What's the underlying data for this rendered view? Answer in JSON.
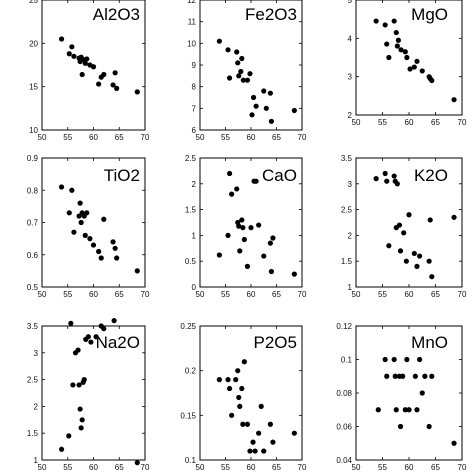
{
  "chart_data": [
    {
      "type": "scatter",
      "title": "Al2O3",
      "xlim": [
        50,
        70
      ],
      "ylim": [
        10,
        25
      ],
      "xticks": [
        "50",
        "55",
        "60",
        "65",
        "70"
      ],
      "yticks": [
        "10",
        "15",
        "20",
        "25"
      ],
      "points": [
        [
          53.8,
          20.5
        ],
        [
          55.3,
          18.8
        ],
        [
          55.8,
          19.6
        ],
        [
          56.2,
          18.5
        ],
        [
          57.2,
          18.3
        ],
        [
          57.4,
          17.9
        ],
        [
          57.6,
          18.4
        ],
        [
          57.8,
          16.4
        ],
        [
          58.2,
          18.1
        ],
        [
          58.4,
          17.7
        ],
        [
          58.7,
          18.2
        ],
        [
          59.3,
          17.5
        ],
        [
          60.0,
          17.3
        ],
        [
          61.0,
          15.3
        ],
        [
          61.5,
          16.1
        ],
        [
          62.0,
          16.4
        ],
        [
          63.8,
          15.2
        ],
        [
          64.2,
          16.6
        ],
        [
          64.5,
          14.8
        ],
        [
          68.5,
          14.4
        ]
      ]
    },
    {
      "type": "scatter",
      "title": "Fe2O3",
      "xlim": [
        50,
        70
      ],
      "ylim": [
        6,
        12
      ],
      "xticks": [
        "50",
        "55",
        "60",
        "65",
        "70"
      ],
      "yticks": [
        "6",
        "7",
        "8",
        "9",
        "10",
        "11",
        "12"
      ],
      "points": [
        [
          53.8,
          10.1
        ],
        [
          55.5,
          9.7
        ],
        [
          55.8,
          8.4
        ],
        [
          57.2,
          9.6
        ],
        [
          57.4,
          9.1
        ],
        [
          57.6,
          8.5
        ],
        [
          58.0,
          8.7
        ],
        [
          58.2,
          9.3
        ],
        [
          58.5,
          8.3
        ],
        [
          59.3,
          8.3
        ],
        [
          59.8,
          8.6
        ],
        [
          60.5,
          7.5
        ],
        [
          60.2,
          6.7
        ],
        [
          61.0,
          7.1
        ],
        [
          62.5,
          7.8
        ],
        [
          63.0,
          7.0
        ],
        [
          63.8,
          7.7
        ],
        [
          64.0,
          6.4
        ],
        [
          68.5,
          6.9
        ]
      ]
    },
    {
      "type": "scatter",
      "title": "MgO",
      "xlim": [
        50,
        70
      ],
      "ylim": [
        2,
        5
      ],
      "xticks": [
        "50",
        "55",
        "60",
        "65",
        "70"
      ],
      "yticks": [
        "2",
        "3",
        "4",
        "5"
      ],
      "points": [
        [
          53.8,
          4.45
        ],
        [
          55.5,
          4.35
        ],
        [
          55.8,
          3.85
        ],
        [
          56.2,
          3.5
        ],
        [
          57.2,
          4.45
        ],
        [
          57.6,
          4.15
        ],
        [
          57.8,
          3.8
        ],
        [
          58.0,
          3.95
        ],
        [
          58.5,
          3.7
        ],
        [
          59.3,
          3.65
        ],
        [
          59.6,
          3.5
        ],
        [
          60.2,
          3.2
        ],
        [
          61.0,
          3.25
        ],
        [
          61.5,
          3.4
        ],
        [
          62.5,
          3.15
        ],
        [
          63.8,
          3.0
        ],
        [
          64.0,
          2.95
        ],
        [
          64.3,
          2.9
        ],
        [
          68.5,
          2.4
        ]
      ]
    },
    {
      "type": "scatter",
      "title": "TiO2",
      "xlim": [
        50,
        70
      ],
      "ylim": [
        0.5,
        0.9
      ],
      "xticks": [
        "50",
        "55",
        "60",
        "65",
        "70"
      ],
      "yticks": [
        "0.5",
        "0.6",
        "0.7",
        "0.8",
        "0.9"
      ],
      "points": [
        [
          53.8,
          0.81
        ],
        [
          55.3,
          0.73
        ],
        [
          55.8,
          0.8
        ],
        [
          56.2,
          0.67
        ],
        [
          57.2,
          0.72
        ],
        [
          57.4,
          0.76
        ],
        [
          57.6,
          0.7
        ],
        [
          57.8,
          0.73
        ],
        [
          58.2,
          0.72
        ],
        [
          58.4,
          0.66
        ],
        [
          58.7,
          0.73
        ],
        [
          59.3,
          0.65
        ],
        [
          60.0,
          0.63
        ],
        [
          61.0,
          0.61
        ],
        [
          61.5,
          0.59
        ],
        [
          62.0,
          0.71
        ],
        [
          63.8,
          0.64
        ],
        [
          64.2,
          0.62
        ],
        [
          64.5,
          0.59
        ],
        [
          68.5,
          0.55
        ]
      ]
    },
    {
      "type": "scatter",
      "title": "CaO",
      "xlim": [
        50,
        70
      ],
      "ylim": [
        0,
        2.5
      ],
      "xticks": [
        "50",
        "55",
        "60",
        "65",
        "70"
      ],
      "yticks": [
        "0",
        "0.5",
        "1",
        "1.5",
        "2",
        "2.5"
      ],
      "points": [
        [
          53.8,
          0.62
        ],
        [
          55.5,
          1.0
        ],
        [
          55.8,
          2.2
        ],
        [
          56.2,
          1.8
        ],
        [
          57.2,
          1.9
        ],
        [
          57.4,
          1.25
        ],
        [
          57.6,
          1.18
        ],
        [
          57.8,
          0.7
        ],
        [
          58.2,
          1.3
        ],
        [
          58.4,
          1.15
        ],
        [
          58.7,
          0.92
        ],
        [
          59.3,
          0.4
        ],
        [
          60.0,
          1.15
        ],
        [
          60.6,
          2.05
        ],
        [
          61.0,
          2.05
        ],
        [
          61.5,
          1.2
        ],
        [
          62.5,
          0.6
        ],
        [
          63.8,
          0.85
        ],
        [
          64.0,
          0.3
        ],
        [
          64.3,
          0.95
        ],
        [
          68.5,
          0.25
        ]
      ]
    },
    {
      "type": "scatter",
      "title": "K2O",
      "xlim": [
        50,
        70
      ],
      "ylim": [
        1,
        3.5
      ],
      "xticks": [
        "50",
        "55",
        "60",
        "65",
        "70"
      ],
      "yticks": [
        "1",
        "1.5",
        "2",
        "2.5",
        "3",
        "3.5"
      ],
      "points": [
        [
          53.8,
          3.1
        ],
        [
          55.5,
          3.2
        ],
        [
          55.8,
          3.05
        ],
        [
          56.2,
          1.8
        ],
        [
          57.2,
          3.15
        ],
        [
          57.4,
          3.05
        ],
        [
          57.6,
          2.15
        ],
        [
          57.8,
          3.0
        ],
        [
          58.2,
          2.2
        ],
        [
          58.4,
          1.7
        ],
        [
          59.0,
          2.05
        ],
        [
          59.5,
          1.5
        ],
        [
          60.0,
          2.4
        ],
        [
          61.0,
          1.65
        ],
        [
          61.5,
          1.4
        ],
        [
          62.0,
          1.6
        ],
        [
          63.8,
          1.5
        ],
        [
          64.0,
          2.3
        ],
        [
          64.3,
          1.2
        ],
        [
          68.5,
          2.35
        ]
      ]
    },
    {
      "type": "scatter",
      "title": "Na2O",
      "xlim": [
        50,
        70
      ],
      "ylim": [
        1,
        3.5
      ],
      "xticks": [
        "50",
        "55",
        "60",
        "65",
        "70"
      ],
      "yticks": [
        "1",
        "1.5",
        "2",
        "2.5",
        "3",
        "3.5"
      ],
      "points": [
        [
          53.8,
          1.2
        ],
        [
          55.2,
          1.45
        ],
        [
          55.6,
          3.55
        ],
        [
          56.0,
          2.4
        ],
        [
          56.5,
          3.0
        ],
        [
          57.0,
          3.05
        ],
        [
          57.2,
          2.4
        ],
        [
          57.4,
          1.95
        ],
        [
          57.6,
          1.6
        ],
        [
          57.8,
          1.75
        ],
        [
          58.0,
          2.45
        ],
        [
          58.2,
          2.5
        ],
        [
          58.5,
          3.25
        ],
        [
          59.0,
          3.3
        ],
        [
          59.5,
          3.2
        ],
        [
          60.5,
          3.3
        ],
        [
          61.5,
          3.5
        ],
        [
          62.0,
          3.45
        ],
        [
          64.0,
          3.6
        ],
        [
          68.5,
          0.95
        ]
      ]
    },
    {
      "type": "scatter",
      "title": "P2O5",
      "xlim": [
        50,
        70
      ],
      "ylim": [
        0.1,
        0.25
      ],
      "xticks": [
        "50",
        "55",
        "60",
        "65",
        "70"
      ],
      "yticks": [
        "0.1",
        "0.15",
        "0.2",
        "0.25"
      ],
      "points": [
        [
          53.8,
          0.19
        ],
        [
          55.5,
          0.19
        ],
        [
          55.8,
          0.18
        ],
        [
          56.2,
          0.15
        ],
        [
          57.0,
          0.19
        ],
        [
          57.4,
          0.2
        ],
        [
          57.6,
          0.17
        ],
        [
          57.8,
          0.16
        ],
        [
          58.2,
          0.18
        ],
        [
          58.4,
          0.14
        ],
        [
          58.7,
          0.21
        ],
        [
          59.3,
          0.14
        ],
        [
          59.8,
          0.11
        ],
        [
          60.4,
          0.12
        ],
        [
          60.8,
          0.11
        ],
        [
          61.5,
          0.13
        ],
        [
          62.0,
          0.16
        ],
        [
          62.5,
          0.11
        ],
        [
          63.8,
          0.14
        ],
        [
          64.3,
          0.12
        ],
        [
          68.5,
          0.13
        ]
      ]
    },
    {
      "type": "scatter",
      "title": "MnO",
      "xlim": [
        50,
        70
      ],
      "ylim": [
        0.04,
        0.12
      ],
      "xticks": [
        "50",
        "55",
        "60",
        "65",
        "70"
      ],
      "yticks": [
        "0.04",
        "0.06",
        "0.08",
        "0.1",
        "0.12"
      ],
      "points": [
        [
          54.2,
          0.07
        ],
        [
          55.5,
          0.1
        ],
        [
          55.8,
          0.09
        ],
        [
          57.2,
          0.1
        ],
        [
          57.4,
          0.09
        ],
        [
          57.6,
          0.07
        ],
        [
          58.2,
          0.09
        ],
        [
          58.4,
          0.06
        ],
        [
          58.8,
          0.09
        ],
        [
          59.3,
          0.07
        ],
        [
          59.6,
          0.1
        ],
        [
          60.0,
          0.07
        ],
        [
          61.2,
          0.09
        ],
        [
          61.5,
          0.07
        ],
        [
          62.0,
          0.1
        ],
        [
          62.5,
          0.08
        ],
        [
          63.0,
          0.09
        ],
        [
          63.8,
          0.06
        ],
        [
          64.3,
          0.09
        ],
        [
          68.5,
          0.05
        ]
      ]
    }
  ]
}
